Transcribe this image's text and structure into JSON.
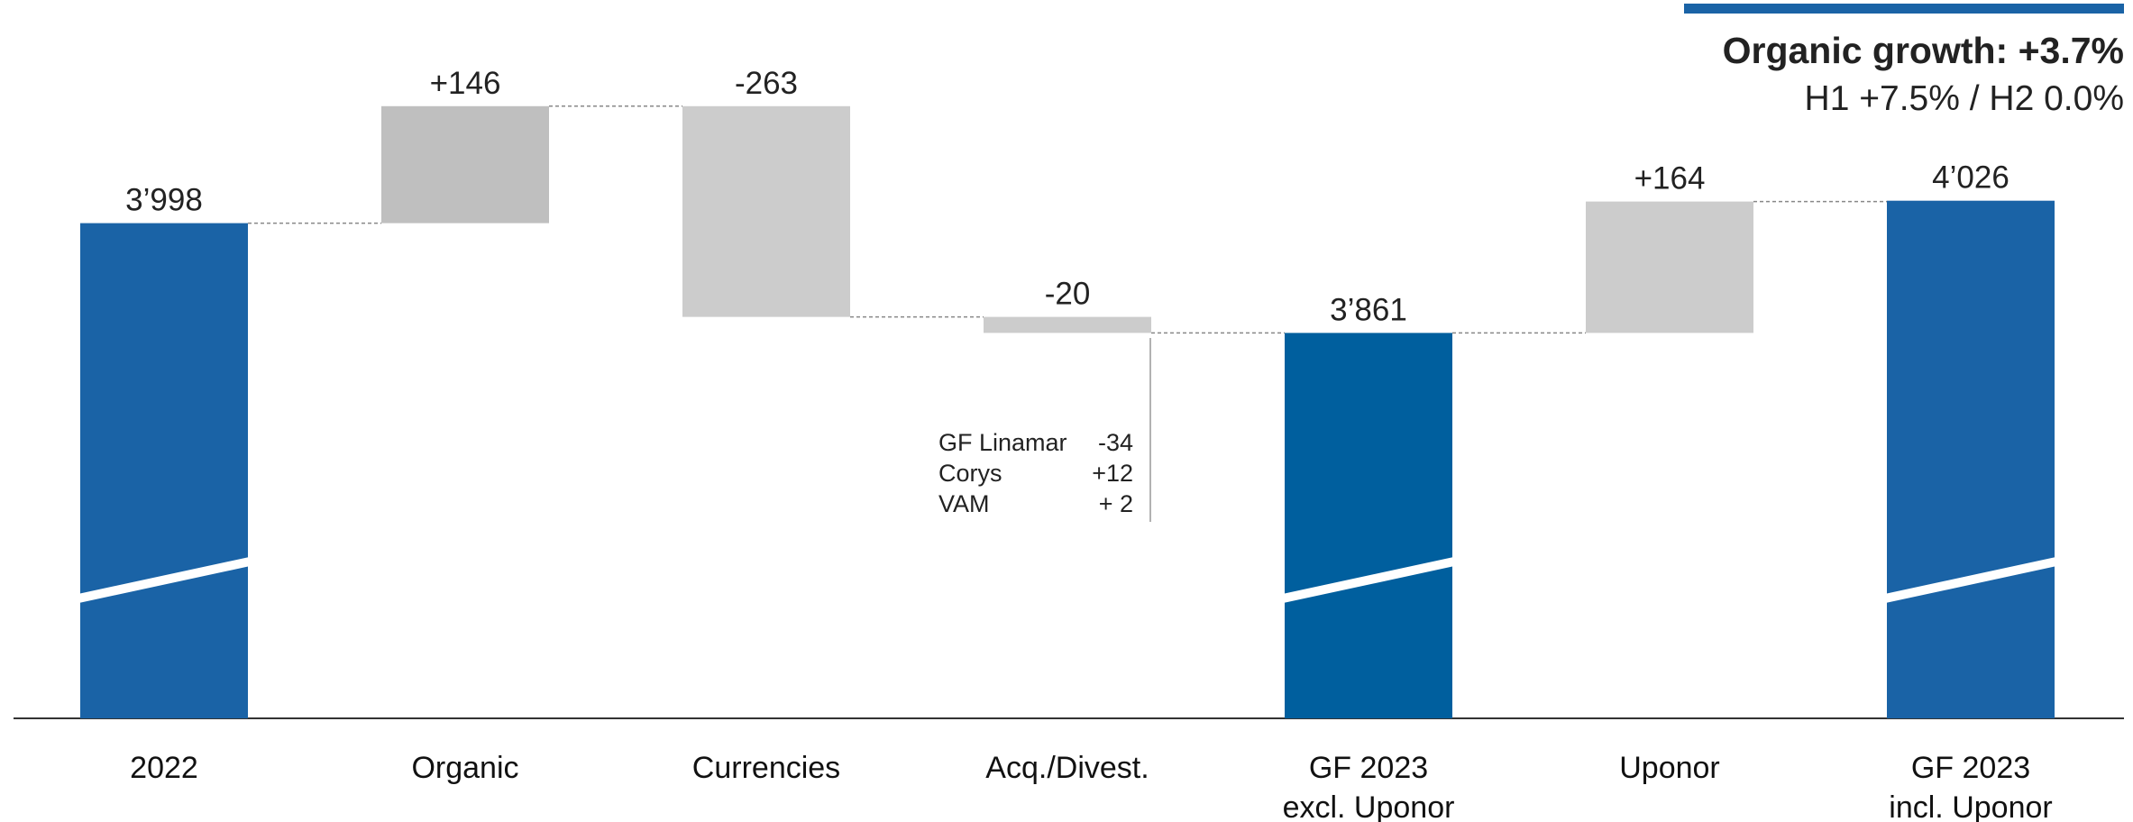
{
  "chart_data": {
    "type": "waterfall",
    "categories": [
      "2022",
      "Organic",
      "Currencies",
      "Acq./Divest.",
      "GF 2023\nexcl. Uponor",
      "Uponor",
      "GF 2023\nincl. Uponor"
    ],
    "values": [
      3998,
      146,
      -263,
      -20,
      3861,
      164,
      4026
    ],
    "value_labels": [
      "3’998",
      "+146",
      "-263",
      "-20",
      "3’861",
      "+164",
      "4’026"
    ],
    "measure": [
      "absolute",
      "relative",
      "relative",
      "relative",
      "absolute",
      "relative",
      "absolute"
    ],
    "colors": [
      "#1a63a6",
      "#bfbfbf",
      "#cccccc",
      "#cccccc",
      "#005f9e",
      "#cccccc",
      "#1a63a6"
    ],
    "ylim": [
      3380,
      4200
    ],
    "annotation": {
      "title": "Organic growth: +3.7%",
      "subtitle": "H1 +7.5% / H2 0.0%"
    },
    "breakdown": [
      [
        "GF Linamar",
        "-34"
      ],
      [
        "Corys",
        "+12"
      ],
      [
        "VAM",
        "+ 2"
      ]
    ]
  }
}
